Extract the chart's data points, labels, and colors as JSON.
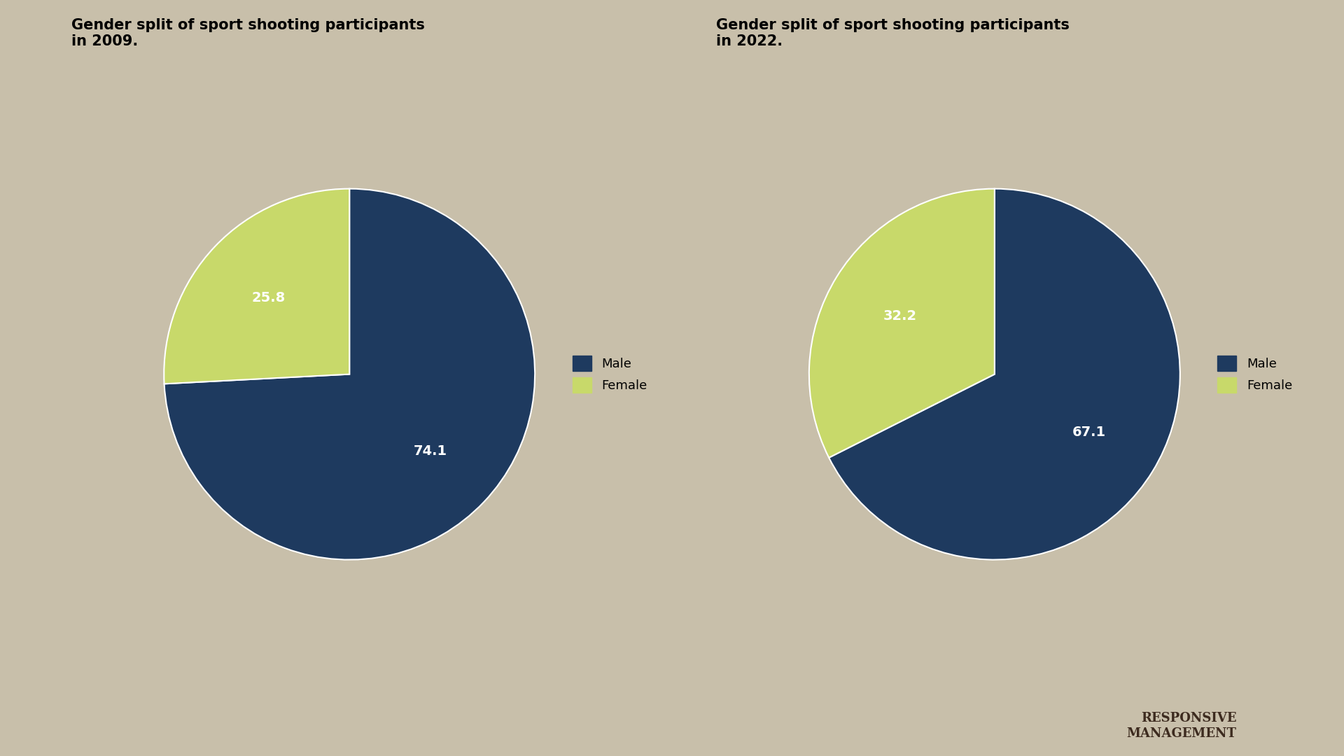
{
  "background_color": "#c8bfaa",
  "panel_color": "#d0ccc0",
  "panel_border_color": "#555555",
  "charts": [
    {
      "title": "Gender split of sport shooting participants\nin 2009.",
      "values": [
        74.1,
        25.8
      ],
      "labels": [
        "Male",
        "Female"
      ],
      "colors": [
        "#1e3a5f",
        "#c8d96a"
      ],
      "autopct_labels": [
        "74.1",
        "25.8"
      ],
      "startangle": 90,
      "legend_labels": [
        "Male",
        "Female"
      ]
    },
    {
      "title": "Gender split of sport shooting participants\nin 2022.",
      "values": [
        67.1,
        32.2
      ],
      "labels": [
        "Male",
        "Female"
      ],
      "colors": [
        "#1e3a5f",
        "#c8d96a"
      ],
      "autopct_labels": [
        "67.1",
        "32.2"
      ],
      "startangle": 90,
      "legend_labels": [
        "Male",
        "Female"
      ]
    }
  ],
  "title_fontsize": 15,
  "label_fontsize": 14,
  "legend_fontsize": 13,
  "male_color": "#1e3a5f",
  "female_color": "#c8d96a",
  "footer_bg": "#ffffff",
  "footer_text_color": "#3d2b1f",
  "logo_text": "RESPONSIVE\nMANAGEMENT"
}
